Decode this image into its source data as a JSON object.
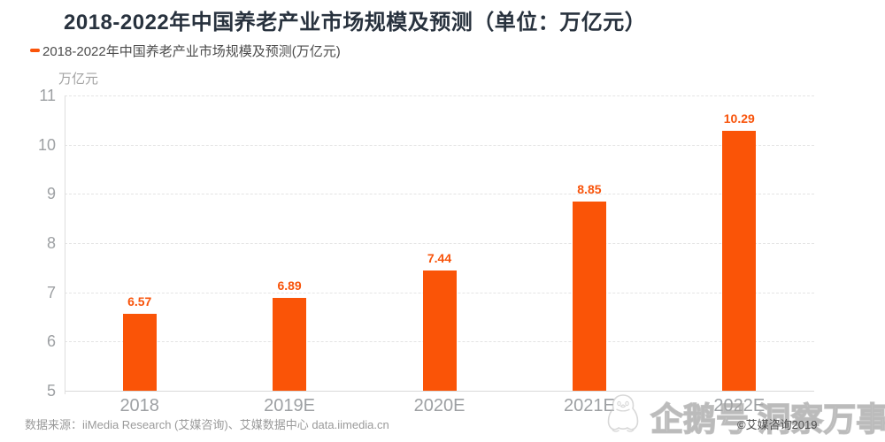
{
  "title": "2018-2022年中国养老产业市场规模及预测（单位：万亿元）",
  "legend": {
    "label": "2018-2022年中国养老产业市场规模及预测(万亿元)",
    "marker_color": "#fa540a"
  },
  "axis_unit_label": "万亿元",
  "chart_data": {
    "type": "bar",
    "title": "2018-2022年中国养老产业市场规模及预测（单位：万亿元）",
    "categories": [
      "2018",
      "2019E",
      "2020E",
      "2021E",
      "2022E"
    ],
    "values": [
      6.57,
      6.89,
      7.44,
      8.85,
      10.29
    ],
    "value_labels": [
      "6.57",
      "6.89",
      "7.44",
      "8.85",
      "10.29"
    ],
    "xlabel": "",
    "ylabel": "万亿元",
    "ylim": [
      5,
      11
    ],
    "yticks": [
      5,
      6,
      7,
      8,
      9,
      10,
      11
    ],
    "bar_color": "#fa5407",
    "value_label_color": "#f8530a",
    "grid": "horizontal-dashed",
    "legend_position": "top-left"
  },
  "footer": {
    "source": "数据来源：iiMedia Research (艾媒咨询)、艾媒数据中心 data.iimedia.cn"
  },
  "watermark": {
    "text": "企鹅号 洞察万事",
    "copyright": "©艾媒咨询2019"
  },
  "colors": {
    "title": "#28323e",
    "bar": "#fa5407",
    "value_label": "#f8530a",
    "axis_text": "#9da0a3",
    "gridline": "#e4e4e4"
  }
}
